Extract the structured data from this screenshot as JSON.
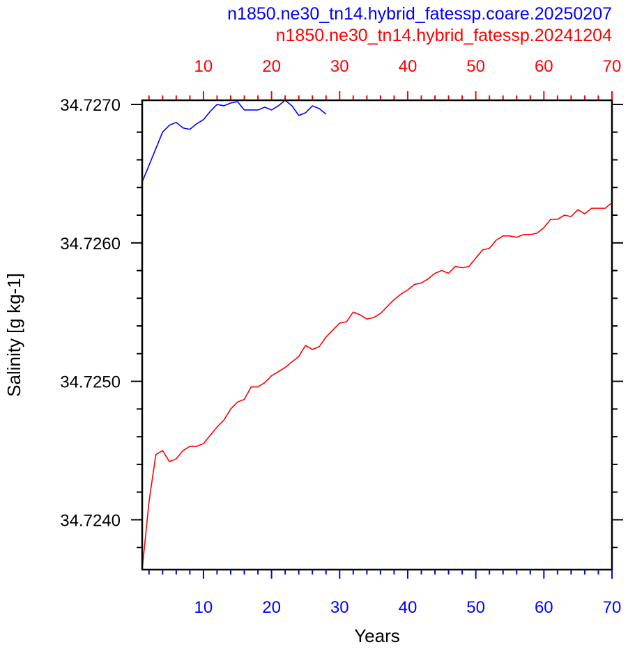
{
  "chart_data": {
    "type": "line",
    "xlabel": "Years",
    "ylabel": "Salinity [g kg-1]",
    "xlim": [
      1,
      70
    ],
    "ylim": [
      34.72364,
      34.72703
    ],
    "x_ticks": [
      10,
      20,
      30,
      40,
      50,
      60,
      70
    ],
    "y_ticks": [
      34.724,
      34.725,
      34.726,
      34.727
    ],
    "y_tick_labels": [
      "34.7240",
      "34.7250",
      "34.7260",
      "34.7270"
    ],
    "grid": false,
    "legend": "none",
    "axis_colors": {
      "bottom": "#0000ff",
      "top": "#ff0000",
      "left": "#000000"
    },
    "series": [
      {
        "name": "n1850.ne30_tn14.hybrid_fatessp.coare.20250207",
        "color": "#0000ff",
        "axis": "bottom",
        "x": [
          1,
          2,
          3,
          4,
          5,
          6,
          7,
          8,
          9,
          10,
          11,
          12,
          13,
          14,
          15,
          16,
          17,
          18,
          19,
          20,
          21,
          22,
          23,
          24,
          25,
          26,
          27,
          28
        ],
        "y": [
          34.72644,
          34.72656,
          34.72668,
          34.7268,
          34.72685,
          34.72687,
          34.72683,
          34.72682,
          34.72686,
          34.72689,
          34.72695,
          34.727,
          34.72699,
          34.72701,
          34.72702,
          34.72696,
          34.72696,
          34.72696,
          34.72698,
          34.72696,
          34.72699,
          34.72703,
          34.72699,
          34.72692,
          34.72694,
          34.72699,
          34.72697,
          34.72693
        ]
      },
      {
        "name": "n1850.ne30_tn14.hybrid_fatessp.20241204",
        "color": "#ff0000",
        "axis": "top",
        "x": [
          1,
          2,
          3,
          4,
          5,
          6,
          7,
          8,
          9,
          10,
          11,
          12,
          13,
          14,
          15,
          16,
          17,
          18,
          19,
          20,
          21,
          22,
          23,
          24,
          25,
          26,
          27,
          28,
          29,
          30,
          31,
          32,
          33,
          34,
          35,
          36,
          37,
          38,
          39,
          40,
          41,
          42,
          43,
          44,
          45,
          46,
          47,
          48,
          49,
          50,
          51,
          52,
          53,
          54,
          55,
          56,
          57,
          58,
          59,
          60,
          61,
          62,
          63,
          64,
          65,
          66,
          67,
          68,
          69,
          70
        ],
        "y": [
          34.72364,
          34.72413,
          34.72447,
          34.7245,
          34.72442,
          34.72444,
          34.7245,
          34.72453,
          34.72453,
          34.72455,
          34.72461,
          34.72467,
          34.72472,
          34.7248,
          34.72485,
          34.72487,
          34.72496,
          34.72496,
          34.72499,
          34.72504,
          34.72507,
          34.7251,
          34.72514,
          34.72518,
          34.72526,
          34.72523,
          34.72525,
          34.72532,
          34.72537,
          34.72542,
          34.72543,
          34.7255,
          34.72548,
          34.72545,
          34.72546,
          34.72549,
          34.72554,
          34.72559,
          34.72563,
          34.72566,
          34.7257,
          34.72571,
          34.72574,
          34.72578,
          34.7258,
          34.72578,
          34.72583,
          34.72582,
          34.72583,
          34.72589,
          34.72595,
          34.72596,
          34.72602,
          34.72605,
          34.72605,
          34.72604,
          34.72606,
          34.72606,
          34.72607,
          34.72611,
          34.72617,
          34.72617,
          34.7262,
          34.72619,
          34.72624,
          34.72621,
          34.72625,
          34.72625,
          34.72625,
          34.72629
        ]
      }
    ]
  }
}
